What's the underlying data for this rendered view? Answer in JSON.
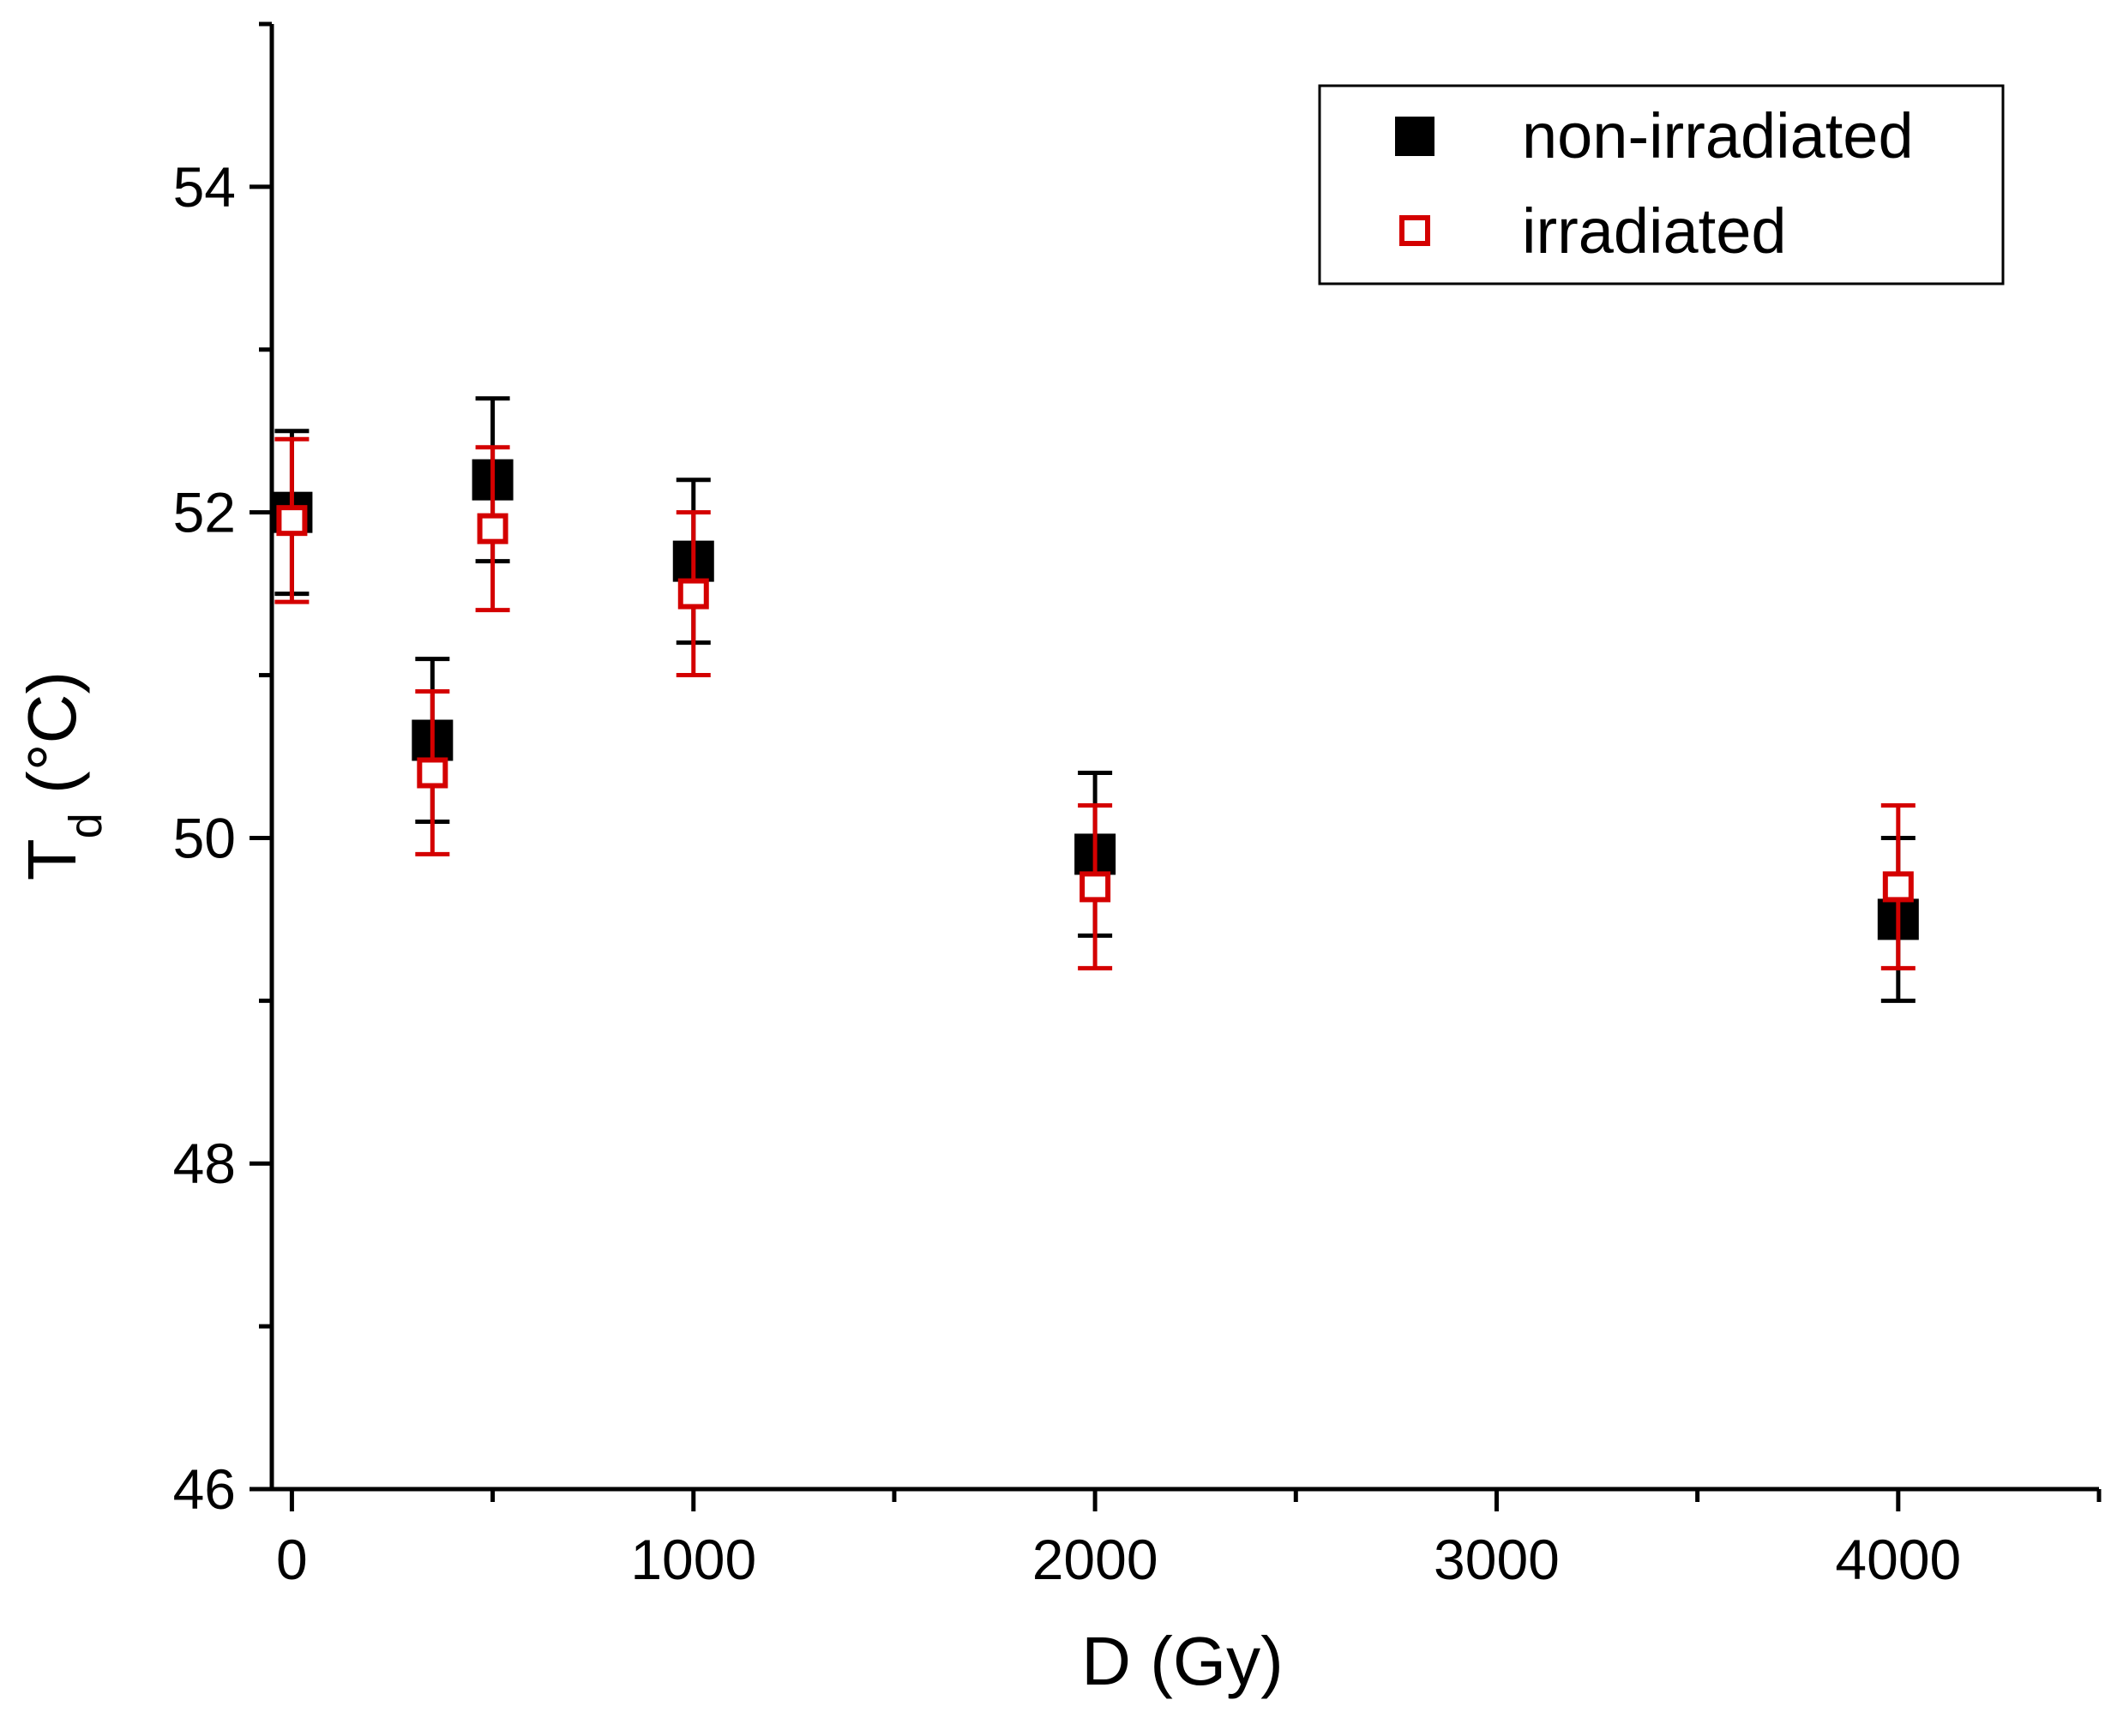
{
  "chart_data": {
    "type": "scatter",
    "xlabel": "D (Gy)",
    "ylabel_main": "T",
    "ylabel_sub": "d",
    "ylabel_unit": " (°C)",
    "xlim": [
      -50,
      4500
    ],
    "ylim": [
      46,
      55
    ],
    "x_ticks": [
      0,
      1000,
      2000,
      3000,
      4000
    ],
    "x_minor_ticks": [
      500,
      1500,
      2500,
      3500,
      4500
    ],
    "y_ticks": [
      46,
      48,
      50,
      52,
      54
    ],
    "y_minor_ticks": [
      47,
      49,
      51,
      53,
      55
    ],
    "legend_position": "top-right",
    "series": [
      {
        "name": "non-irradiated",
        "marker": "filled-square",
        "color": "#000000",
        "points": [
          {
            "x": 0,
            "y": 52.0,
            "err": 0.5
          },
          {
            "x": 350,
            "y": 50.6,
            "err": 0.5
          },
          {
            "x": 500,
            "y": 52.2,
            "err": 0.5
          },
          {
            "x": 1000,
            "y": 51.7,
            "err": 0.5
          },
          {
            "x": 2000,
            "y": 49.9,
            "err": 0.5
          },
          {
            "x": 4000,
            "y": 49.5,
            "err": 0.5
          }
        ]
      },
      {
        "name": "irradiated",
        "marker": "open-square",
        "color": "#d40000",
        "points": [
          {
            "x": 0,
            "y": 51.95,
            "err": 0.5
          },
          {
            "x": 350,
            "y": 50.4,
            "err": 0.5
          },
          {
            "x": 500,
            "y": 51.9,
            "err": 0.5
          },
          {
            "x": 1000,
            "y": 51.5,
            "err": 0.5
          },
          {
            "x": 2000,
            "y": 49.7,
            "err": 0.5
          },
          {
            "x": 4000,
            "y": 49.7,
            "err": 0.5
          }
        ]
      }
    ]
  }
}
